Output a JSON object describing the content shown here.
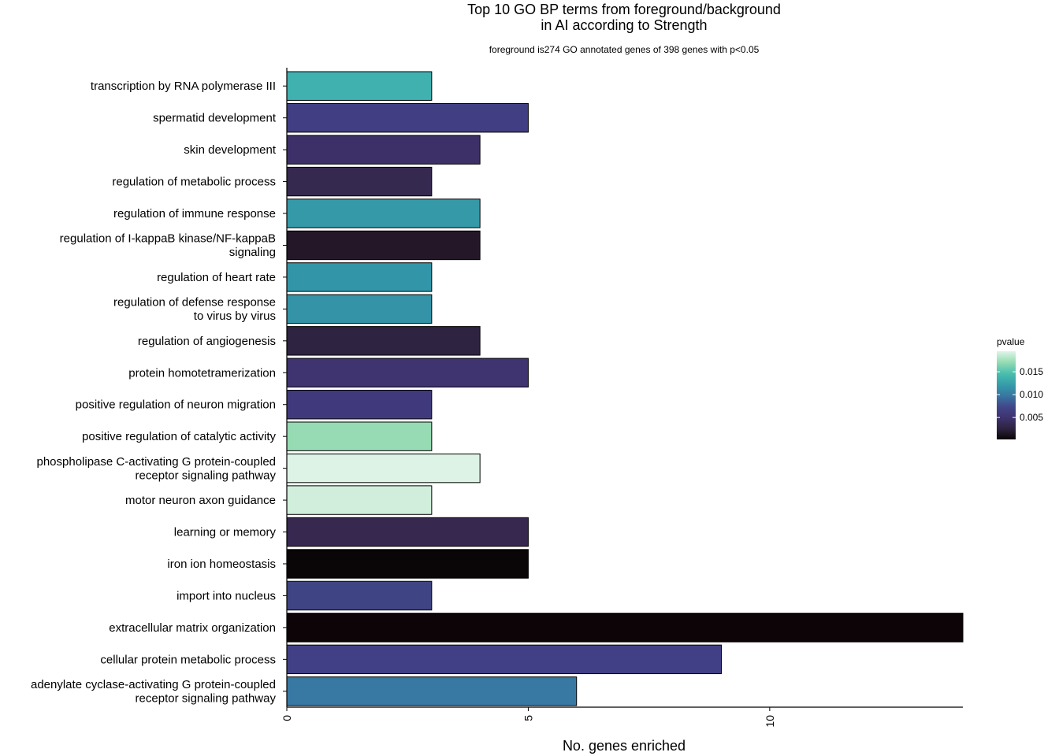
{
  "chart_data": {
    "type": "bar",
    "orientation": "horizontal",
    "title": [
      "Top 10 GO BP terms from foreground/background",
      "in AI according to Strength"
    ],
    "subtitle": "foreground is274 GO annotated genes of 398 genes with p<0.05",
    "xlabel": "No. genes enriched",
    "ylabel": "",
    "xlim": [
      0,
      14
    ],
    "xticks": [
      "0",
      "5",
      "10"
    ],
    "grid": false,
    "categories": [
      [
        "transcription by RNA polymerase III"
      ],
      [
        "spermatid development"
      ],
      [
        "skin development"
      ],
      [
        "regulation of metabolic process"
      ],
      [
        "regulation of immune response"
      ],
      [
        "regulation of I-kappaB kinase/NF-kappaB",
        "signaling"
      ],
      [
        "regulation of heart rate"
      ],
      [
        "regulation of defense response",
        "to virus by virus"
      ],
      [
        "regulation of angiogenesis"
      ],
      [
        "protein homotetramerization"
      ],
      [
        "positive regulation of neuron migration"
      ],
      [
        "positive regulation of catalytic activity"
      ],
      [
        "phospholipase C-activating G protein-coupled",
        "receptor signaling pathway"
      ],
      [
        "motor neuron axon guidance"
      ],
      [
        "learning or memory"
      ],
      [
        "iron ion homeostasis"
      ],
      [
        "import into nucleus"
      ],
      [
        "extracellular matrix organization"
      ],
      [
        "cellular protein metabolic process"
      ],
      [
        "adenylate cyclase-activating G protein-coupled",
        "receptor signaling pathway"
      ]
    ],
    "values": [
      3,
      5,
      4,
      3,
      4,
      4,
      3,
      3,
      4,
      5,
      3,
      3,
      4,
      3,
      5,
      5,
      3,
      14,
      9,
      6
    ],
    "pvalues": [
      0.0135,
      0.0082,
      0.005,
      0.004,
      0.0125,
      0.002,
      0.013,
      0.0128,
      0.003,
      0.0065,
      0.007,
      0.017,
      0.0195,
      0.0185,
      0.0045,
      0.0002,
      0.0085,
      0.0006,
      0.0075,
      0.011
    ],
    "bar_colors": [
      "#40B1AF",
      "#413E84",
      "#3D3068",
      "#36294F",
      "#3599A8",
      "#241828",
      "#3396A8",
      "#3493A6",
      "#2E2340",
      "#3F3370",
      "#403A7C",
      "#96DBB3",
      "#DDF3E6",
      "#D0EEDB",
      "#36284F",
      "#0A0506",
      "#3F4484",
      "#0C0406",
      "#413F85",
      "#3879A3"
    ],
    "legend": {
      "title": "pvalue",
      "position": "right",
      "min": 0.0002,
      "max": 0.0195,
      "ticks": [
        0.005,
        0.01,
        0.015
      ],
      "tick_labels": [
        "0.005",
        "0.010",
        "0.015"
      ],
      "gradient": [
        "#0A0506",
        "#2E2340",
        "#3F3370",
        "#41488C",
        "#3878A2",
        "#359EAA",
        "#4BBFAD",
        "#96DBB3",
        "#E0F5E9"
      ]
    }
  }
}
